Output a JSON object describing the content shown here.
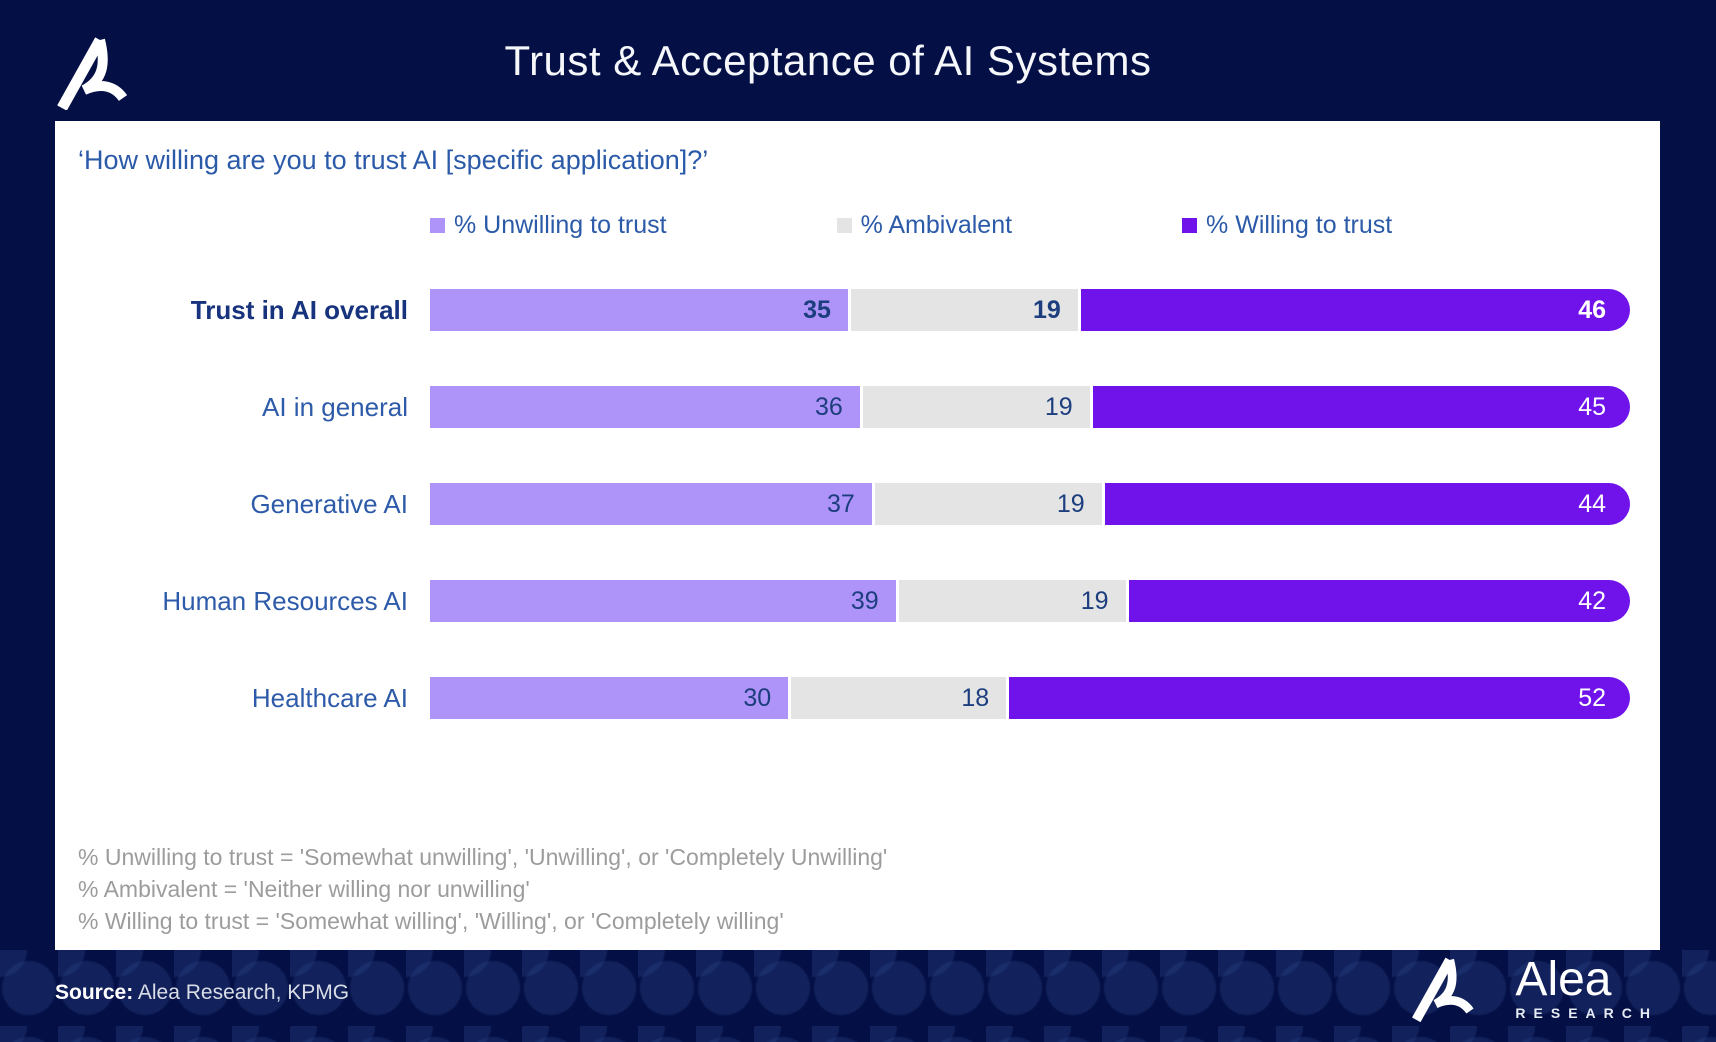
{
  "header": {
    "title": "Trust & Acceptance of AI Systems"
  },
  "question": "‘How willing are you to trust AI [specific application]?’",
  "colors": {
    "background_navy": "#041045",
    "card_white": "#ffffff",
    "unwilling_purple": "#ae93f8",
    "ambivalent_gray": "#e4e4e4",
    "willing_violet": "#7013ea",
    "label_blue": "#2e5ba9",
    "value_navy": "#1c3e7e",
    "footnote_gray": "#9c9c9c"
  },
  "chart_data": {
    "type": "bar",
    "orientation": "horizontal-stacked",
    "title": "Trust & Acceptance of AI Systems",
    "subtitle": "‘How willing are you to trust AI [specific application]?’",
    "categories": [
      "Trust in AI overall",
      "AI in general",
      "Generative AI",
      "Human Resources AI",
      "Healthcare AI"
    ],
    "series": [
      {
        "name": "% Unwilling to trust",
        "color": "#ae93f8",
        "values": [
          35,
          36,
          37,
          39,
          30
        ]
      },
      {
        "name": "% Ambivalent",
        "color": "#e4e4e4",
        "values": [
          19,
          19,
          19,
          19,
          18
        ]
      },
      {
        "name": "% Willing to trust",
        "color": "#7013ea",
        "values": [
          46,
          45,
          44,
          42,
          52
        ]
      }
    ],
    "xlim": [
      0,
      100
    ],
    "grid": false,
    "legend_position": "top",
    "value_labels": "inside-end",
    "emphasized_category": "Trust in AI overall"
  },
  "footnotes": [
    "% Unwilling to trust = 'Somewhat unwilling', 'Unwilling', or 'Completely Unwilling'",
    "% Ambivalent = 'Neither willing nor unwilling'",
    "% Willing to trust = 'Somewhat willing', 'Willing', or 'Completely willing'"
  ],
  "footer": {
    "source_label": "Source:",
    "source_text": " Alea Research, KPMG",
    "brand_name": "Alea",
    "brand_sub": "RESEARCH"
  }
}
